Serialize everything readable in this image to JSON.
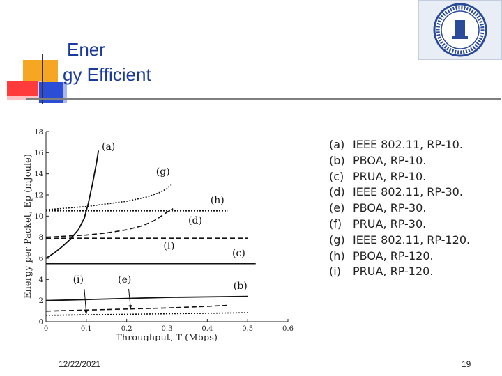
{
  "slide": {
    "title_line1": "Ener",
    "title_line2": "gy Efficient",
    "date": "12/22/2021",
    "page_number": "19",
    "accent_colors": {
      "orange": "#f5a623",
      "red": "#ff3b3b",
      "blue": "#2a4fd6",
      "pink": "#ffc2c2",
      "light_blue": "#a9b8ee"
    },
    "title_color": "#1a3a9c",
    "logo_icon": "university-seal-icon"
  },
  "chart_data": {
    "type": "line",
    "xlabel": "Throughput, T (Mbps)",
    "ylabel": "Energy per Packet, Ep (mJoule)",
    "xlim": [
      0,
      0.6
    ],
    "ylim": [
      0,
      18
    ],
    "x_ticks": [
      "0",
      "0.1",
      "0.2",
      "0.3",
      "0.4",
      "0.5",
      "0.6"
    ],
    "y_ticks": [
      "0",
      "2",
      "4",
      "6",
      "8",
      "10",
      "12",
      "14",
      "16",
      "18"
    ],
    "grid": false,
    "legend_position": "right",
    "series": [
      {
        "name": "(a)",
        "label": "IEEE 802.11, RP-10.",
        "style": "solid",
        "x": [
          0,
          0.02,
          0.04,
          0.06,
          0.08,
          0.095,
          0.105,
          0.115,
          0.125,
          0.13
        ],
        "y": [
          6.0,
          6.5,
          7.1,
          7.8,
          8.7,
          9.8,
          11.2,
          13.0,
          15.0,
          16.2
        ]
      },
      {
        "name": "(b)",
        "label": "PBOA, RP-10.",
        "style": "solid",
        "x": [
          0,
          0.1,
          0.2,
          0.3,
          0.4,
          0.5
        ],
        "y": [
          2.0,
          2.1,
          2.2,
          2.3,
          2.35,
          2.4
        ]
      },
      {
        "name": "(c)",
        "label": "PRUA, RP-10.",
        "style": "solid",
        "x": [
          0,
          0.1,
          0.2,
          0.3,
          0.4,
          0.5,
          0.52
        ],
        "y": [
          5.5,
          5.5,
          5.5,
          5.5,
          5.5,
          5.5,
          5.5
        ]
      },
      {
        "name": "(d)",
        "label": "IEEE 802.11, RP-30.",
        "style": "dashed",
        "x": [
          0,
          0.05,
          0.1,
          0.15,
          0.2,
          0.24,
          0.27,
          0.29,
          0.305,
          0.315
        ],
        "y": [
          8.0,
          8.1,
          8.2,
          8.4,
          8.7,
          9.1,
          9.6,
          10.1,
          10.5,
          10.7
        ]
      },
      {
        "name": "(e)",
        "label": "PBOA, RP-30.",
        "style": "dashed",
        "x": [
          0,
          0.1,
          0.2,
          0.3,
          0.4,
          0.45
        ],
        "y": [
          1.0,
          1.1,
          1.2,
          1.3,
          1.45,
          1.55
        ]
      },
      {
        "name": "(f)",
        "label": "PRUA, RP-30.",
        "style": "dashed",
        "x": [
          0,
          0.1,
          0.2,
          0.3,
          0.4,
          0.5
        ],
        "y": [
          7.9,
          7.9,
          7.9,
          7.9,
          7.9,
          7.9
        ]
      },
      {
        "name": "(g)",
        "label": "IEEE 802.11, RP-120.",
        "style": "dotted",
        "x": [
          0,
          0.1,
          0.2,
          0.25,
          0.28,
          0.3,
          0.31
        ],
        "y": [
          10.6,
          10.9,
          11.4,
          11.8,
          12.2,
          12.6,
          13.0
        ]
      },
      {
        "name": "(h)",
        "label": "PBOA, RP-120.",
        "style": "dotted",
        "x": [
          0,
          0.1,
          0.2,
          0.3,
          0.4,
          0.45
        ],
        "y": [
          10.5,
          10.5,
          10.5,
          10.5,
          10.5,
          10.5
        ]
      },
      {
        "name": "(i)",
        "label": "PRUA, RP-120.",
        "style": "dotted",
        "x": [
          0,
          0.1,
          0.2,
          0.3,
          0.4,
          0.5
        ],
        "y": [
          0.6,
          0.65,
          0.7,
          0.75,
          0.8,
          0.85
        ]
      }
    ],
    "annotations": [
      {
        "text": "(a)",
        "x": 0.155,
        "y": 16.3
      },
      {
        "text": "(g)",
        "x": 0.29,
        "y": 13.9
      },
      {
        "text": "(h)",
        "x": 0.425,
        "y": 11.2
      },
      {
        "text": "(d)",
        "x": 0.37,
        "y": 9.3
      },
      {
        "text": "(f)",
        "x": 0.305,
        "y": 6.9
      },
      {
        "text": "(c)",
        "x": 0.478,
        "y": 6.2
      },
      {
        "text": "(i)",
        "x": 0.08,
        "y": 3.7
      },
      {
        "text": "(e)",
        "x": 0.195,
        "y": 3.7
      },
      {
        "text": "(b)",
        "x": 0.482,
        "y": 3.1
      }
    ],
    "arrows": [
      {
        "from_x": 0.095,
        "from_y": 3.1,
        "to_x": 0.1,
        "to_y": 0.7
      },
      {
        "from_x": 0.205,
        "from_y": 3.1,
        "to_x": 0.21,
        "to_y": 1.2
      }
    ]
  }
}
